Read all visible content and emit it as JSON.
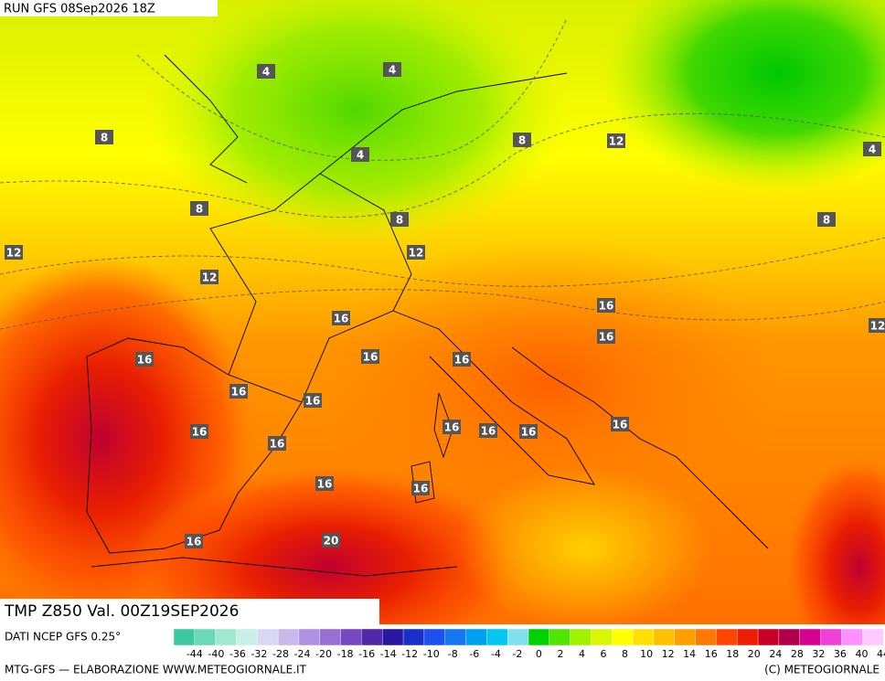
{
  "header": {
    "run": "RUN GFS 08Sep2026 18Z"
  },
  "contour_labels": [
    4,
    4,
    8,
    4,
    8,
    12,
    4,
    8,
    8,
    8,
    12,
    12,
    12,
    16,
    12,
    16,
    16,
    16,
    16,
    16,
    16,
    16,
    16,
    16,
    16,
    16,
    16,
    16,
    16,
    16,
    16,
    20
  ],
  "footer": {
    "title": "TMP  Z850  Val. 00Z19SEP2026",
    "source": "DATI NCEP GFS 0.25°",
    "credit_left": "MTG-GFS — ELABORAZIONE WWW.METEOGIORNALE.IT",
    "credit_right": "(C) METEOGIORNALE"
  },
  "legend": {
    "ticks": [
      -44,
      -40,
      -36,
      -32,
      -28,
      -24,
      -20,
      -18,
      -16,
      -14,
      -12,
      -10,
      -8,
      -6,
      -4,
      -2,
      0,
      2,
      4,
      6,
      8,
      10,
      12,
      14,
      16,
      18,
      20,
      24,
      28,
      32,
      36,
      40,
      44
    ],
    "colors": [
      "#3cc8a0",
      "#6cd8b8",
      "#a0e8d0",
      "#c8f0e8",
      "#d8d8f4",
      "#c8b8ec",
      "#b090e0",
      "#9870d4",
      "#7848c0",
      "#5028a8",
      "#2818a0",
      "#1830c8",
      "#1e50f0",
      "#1478f0",
      "#00a0f0",
      "#00c8f0",
      "#80e0f0",
      "#00d200",
      "#50e400",
      "#a0f000",
      "#d8f800",
      "#ffff00",
      "#ffe000",
      "#ffc000",
      "#ffa000",
      "#ff7800",
      "#ff4600",
      "#f01e00",
      "#c80028",
      "#b0004a",
      "#d80090",
      "#f040d8",
      "#ff90ff",
      "#ffc8ff"
    ]
  }
}
